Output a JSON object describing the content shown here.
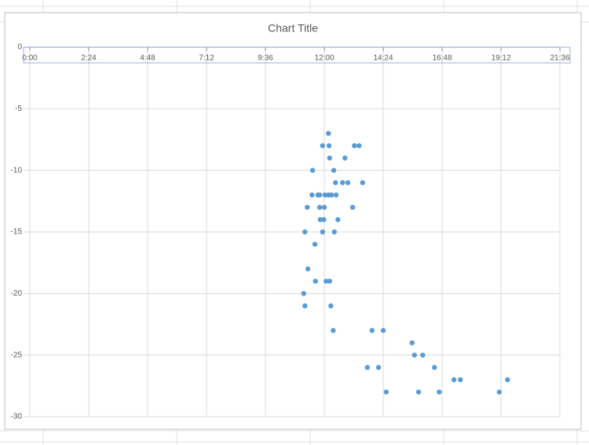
{
  "chart_data": {
    "type": "scatter",
    "title": "Chart Title",
    "color": "#5b9bd5",
    "grid": true,
    "xlim": [
      0,
      0.9
    ],
    "ylim": [
      -30,
      0
    ],
    "xticks": [
      {
        "value": 0,
        "label": "0:00"
      },
      {
        "value": 0.1,
        "label": "2:24"
      },
      {
        "value": 0.2,
        "label": "4:48"
      },
      {
        "value": 0.3,
        "label": "7:12"
      },
      {
        "value": 0.4,
        "label": "9:36"
      },
      {
        "value": 0.5,
        "label": "12:00"
      },
      {
        "value": 0.6,
        "label": "14:24"
      },
      {
        "value": 0.7,
        "label": "16:48"
      },
      {
        "value": 0.8,
        "label": "19:12"
      },
      {
        "value": 0.9,
        "label": "21:36"
      }
    ],
    "yticks": [
      0,
      -5,
      -10,
      -15,
      -20,
      -25,
      -30
    ],
    "x": [
      0.507,
      0.497,
      0.508,
      0.551,
      0.559,
      0.535,
      0.509,
      0.48,
      0.516,
      0.519,
      0.531,
      0.54,
      0.565,
      0.479,
      0.489,
      0.492,
      0.501,
      0.507,
      0.512,
      0.52,
      0.471,
      0.492,
      0.5,
      0.548,
      0.493,
      0.499,
      0.523,
      0.467,
      0.497,
      0.517,
      0.484,
      0.472,
      0.485,
      0.503,
      0.509,
      0.465,
      0.467,
      0.511,
      0.515,
      0.581,
      0.6,
      0.649,
      0.653,
      0.667,
      0.573,
      0.592,
      0.687,
      0.72,
      0.731,
      0.811,
      0.605,
      0.66,
      0.695,
      0.797
    ],
    "values": [
      -7,
      -8,
      -8,
      -8,
      -8,
      -9,
      -9,
      -10,
      -10,
      -11,
      -11,
      -11,
      -11,
      -12,
      -12,
      -12,
      -12,
      -12,
      -12,
      -12,
      -13,
      -13,
      -13,
      -13,
      -14,
      -14,
      -14,
      -15,
      -15,
      -15,
      -16,
      -18,
      -19,
      -19,
      -19,
      -20,
      -21,
      -21,
      -23,
      -23,
      -23,
      -24,
      -25,
      -25,
      -26,
      -26,
      -26,
      -27,
      -27,
      -27,
      -28,
      -28,
      -28,
      -28
    ]
  }
}
